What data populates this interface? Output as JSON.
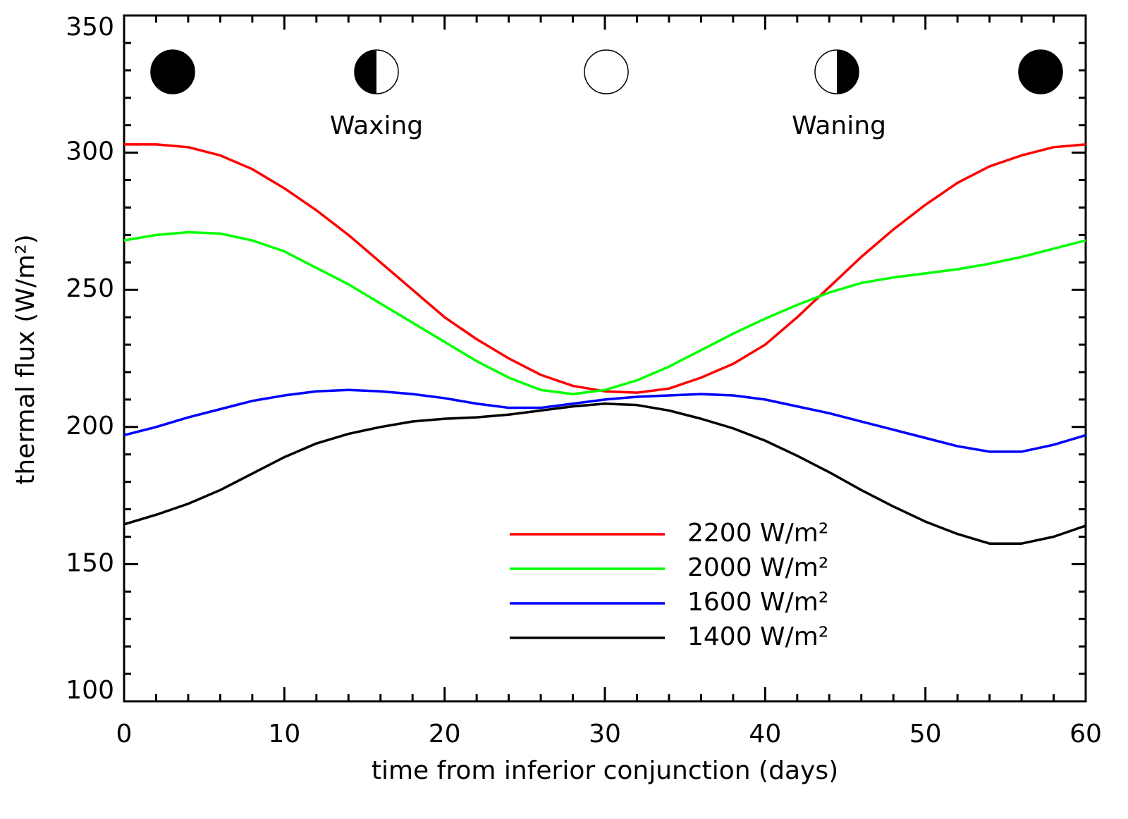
{
  "chart_data": {
    "type": "line",
    "xlabel": "time from inferior conjunction (days)",
    "ylabel": "thermal flux (W/m²)",
    "annotations": [
      "Waxing",
      "Waning"
    ],
    "x": [
      0,
      2,
      4,
      6,
      8,
      10,
      12,
      14,
      16,
      18,
      20,
      22,
      24,
      26,
      28,
      30,
      32,
      34,
      36,
      38,
      40,
      42,
      44,
      46,
      48,
      50,
      52,
      54,
      56,
      58,
      60
    ],
    "series": [
      {
        "name": "2200 W/m²",
        "color": "#ff0000",
        "values": [
          303,
          303,
          302,
          299,
          294,
          287,
          279,
          270,
          260,
          250,
          240,
          232,
          225,
          219,
          215,
          213,
          212.5,
          214,
          218,
          223,
          230,
          240,
          251,
          262,
          272,
          281,
          289,
          295,
          299,
          302,
          303
        ]
      },
      {
        "name": "2000 W/m²",
        "color": "#00ff00",
        "values": [
          268,
          270,
          271,
          270.5,
          268,
          264,
          258,
          252,
          245,
          238,
          231,
          224,
          218,
          213.5,
          212,
          213.5,
          217,
          222,
          228,
          234,
          239.5,
          244.5,
          249,
          252.5,
          254.5,
          256,
          257.5,
          259.5,
          262,
          265,
          268
        ]
      },
      {
        "name": "1600 W/m²",
        "color": "#0000ff",
        "values": [
          197,
          200,
          203.5,
          206.5,
          209.5,
          211.5,
          213,
          213.5,
          213,
          212,
          210.5,
          208.5,
          207,
          207,
          208.5,
          210,
          211,
          211.5,
          212,
          211.5,
          210,
          207.5,
          205,
          202,
          199,
          196,
          193,
          191,
          191,
          193.5,
          197
        ]
      },
      {
        "name": "1400 W/m²",
        "color": "#000000",
        "values": [
          164.5,
          168,
          172,
          177,
          183,
          189,
          194,
          197.5,
          200,
          202,
          203,
          203.5,
          204.5,
          206,
          207.5,
          208.5,
          208,
          206,
          203,
          199.5,
          195,
          189.5,
          183.5,
          177,
          171,
          165.5,
          161,
          157.5,
          157.5,
          160,
          164
        ]
      }
    ],
    "xlim": [
      0,
      60
    ],
    "ylim": [
      100,
      350
    ],
    "xticks": [
      0,
      10,
      20,
      30,
      40,
      50,
      60
    ],
    "yticks": [
      100,
      150,
      200,
      250,
      300,
      350
    ],
    "grid": false,
    "legend": "lower right"
  }
}
